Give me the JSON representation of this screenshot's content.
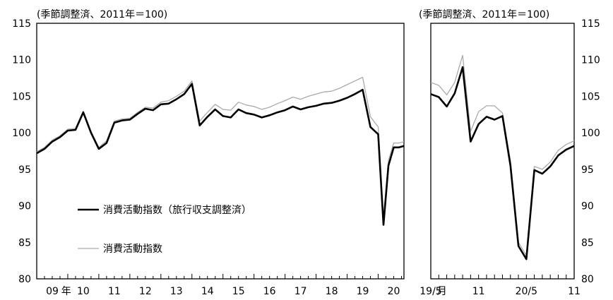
{
  "chart_data": [
    {
      "type": "line",
      "unit_label": "(季節調整済、2011年＝100)",
      "x_range": [
        2009,
        2020.83
      ],
      "ylim": [
        80,
        115
      ],
      "y_ticks": [
        "80",
        "85",
        "90",
        "95",
        "100",
        "105",
        "110",
        "115"
      ],
      "x_tick_labels": [
        {
          "x": 2009.5,
          "label": "09"
        },
        {
          "x": 2009.95,
          "label": "年"
        },
        {
          "x": 2010.5,
          "label": "10"
        },
        {
          "x": 2011.5,
          "label": "11"
        },
        {
          "x": 2012.5,
          "label": "12"
        },
        {
          "x": 2013.5,
          "label": "13"
        },
        {
          "x": 2014.5,
          "label": "14"
        },
        {
          "x": 2015.5,
          "label": "15"
        },
        {
          "x": 2016.5,
          "label": "16"
        },
        {
          "x": 2017.5,
          "label": "17"
        },
        {
          "x": 2018.5,
          "label": "18"
        },
        {
          "x": 2019.5,
          "label": "19"
        },
        {
          "x": 2020.5,
          "label": "20"
        }
      ],
      "grid": false,
      "legend_position": "lower-left",
      "series": [
        {
          "name": "消費活動指数（旅行収支調整済）",
          "color": "#000000",
          "x": [
            2009.0,
            2009.25,
            2009.5,
            2009.75,
            2010.0,
            2010.25,
            2010.5,
            2010.75,
            2011.0,
            2011.25,
            2011.5,
            2011.75,
            2012.0,
            2012.25,
            2012.5,
            2012.75,
            2013.0,
            2013.25,
            2013.5,
            2013.75,
            2014.0,
            2014.25,
            2014.5,
            2014.75,
            2015.0,
            2015.25,
            2015.5,
            2015.75,
            2016.0,
            2016.25,
            2016.5,
            2016.75,
            2017.0,
            2017.25,
            2017.5,
            2017.75,
            2018.0,
            2018.25,
            2018.5,
            2018.75,
            2019.0,
            2019.25,
            2019.5,
            2019.75,
            2020.0,
            2020.17,
            2020.33,
            2020.5,
            2020.67,
            2020.83
          ],
          "values": [
            97.2,
            97.8,
            98.8,
            99.4,
            100.3,
            100.4,
            102.8,
            100.0,
            97.8,
            98.6,
            101.4,
            101.7,
            101.8,
            102.6,
            103.3,
            103.1,
            103.9,
            104.0,
            104.6,
            105.3,
            106.7,
            101.0,
            102.2,
            103.2,
            102.3,
            102.1,
            103.2,
            102.7,
            102.5,
            102.1,
            102.4,
            102.8,
            103.1,
            103.6,
            103.2,
            103.5,
            103.7,
            104.0,
            104.1,
            104.4,
            104.8,
            105.3,
            105.9,
            100.8,
            99.8,
            87.4,
            95.5,
            98.0,
            98.0,
            98.2
          ]
        },
        {
          "name": "消費活動指数",
          "color": "#aaaaaa",
          "x": [
            2009.0,
            2009.25,
            2009.5,
            2009.75,
            2010.0,
            2010.25,
            2010.5,
            2010.75,
            2011.0,
            2011.25,
            2011.5,
            2011.75,
            2012.0,
            2012.25,
            2012.5,
            2012.75,
            2013.0,
            2013.25,
            2013.5,
            2013.75,
            2014.0,
            2014.25,
            2014.5,
            2014.75,
            2015.0,
            2015.25,
            2015.5,
            2015.75,
            2016.0,
            2016.25,
            2016.5,
            2016.75,
            2017.0,
            2017.25,
            2017.5,
            2017.75,
            2018.0,
            2018.25,
            2018.5,
            2018.75,
            2019.0,
            2019.25,
            2019.5,
            2019.75,
            2020.0,
            2020.17,
            2020.33,
            2020.5,
            2020.67,
            2020.83
          ],
          "values": [
            97.4,
            98.0,
            99.0,
            99.6,
            100.5,
            100.6,
            103.0,
            100.2,
            98.0,
            98.9,
            101.6,
            101.9,
            102.0,
            102.8,
            103.5,
            103.4,
            104.2,
            104.4,
            105.0,
            105.7,
            107.1,
            101.6,
            102.8,
            103.9,
            103.2,
            103.1,
            104.2,
            103.8,
            103.6,
            103.2,
            103.5,
            104.0,
            104.4,
            104.9,
            104.6,
            105.0,
            105.3,
            105.6,
            105.7,
            106.1,
            106.6,
            107.1,
            107.6,
            102.2,
            100.8,
            88.4,
            96.2,
            98.6,
            98.6,
            98.8
          ]
        }
      ]
    },
    {
      "type": "line",
      "unit_label": "(季節調整済、2011年＝100)",
      "x_range": [
        0,
        18
      ],
      "ylim": [
        80,
        115
      ],
      "y_ticks": [
        "80",
        "85",
        "90",
        "95",
        "100",
        "105",
        "110",
        "115"
      ],
      "x_tick_labels": [
        {
          "x": 0,
          "label": "19/5"
        },
        {
          "x": 1.4,
          "label": "月"
        },
        {
          "x": 6,
          "label": "11"
        },
        {
          "x": 12,
          "label": "20/5"
        },
        {
          "x": 18,
          "label": "11"
        }
      ],
      "grid": false,
      "series": [
        {
          "name": "消費活動指数（旅行収支調整済）",
          "color": "#000000",
          "x": [
            0,
            1,
            2,
            3,
            4,
            5,
            6,
            7,
            8,
            9,
            10,
            11,
            12,
            13,
            14,
            15,
            16,
            17,
            18
          ],
          "values": [
            105.3,
            104.9,
            103.6,
            105.4,
            109.0,
            98.8,
            101.2,
            102.2,
            101.8,
            102.3,
            95.5,
            84.5,
            82.7,
            94.9,
            94.4,
            95.4,
            96.9,
            97.7,
            98.2
          ]
        },
        {
          "name": "消費活動指数",
          "color": "#aaaaaa",
          "x": [
            0,
            1,
            2,
            3,
            4,
            5,
            6,
            7,
            8,
            9,
            10,
            11,
            12,
            13,
            14,
            15,
            16,
            17,
            18
          ],
          "values": [
            106.9,
            106.5,
            105.2,
            106.9,
            110.6,
            100.2,
            102.9,
            103.7,
            103.7,
            102.7,
            96.2,
            85.0,
            83.2,
            95.4,
            95.0,
            96.0,
            97.6,
            98.4,
            98.9
          ]
        }
      ]
    }
  ]
}
